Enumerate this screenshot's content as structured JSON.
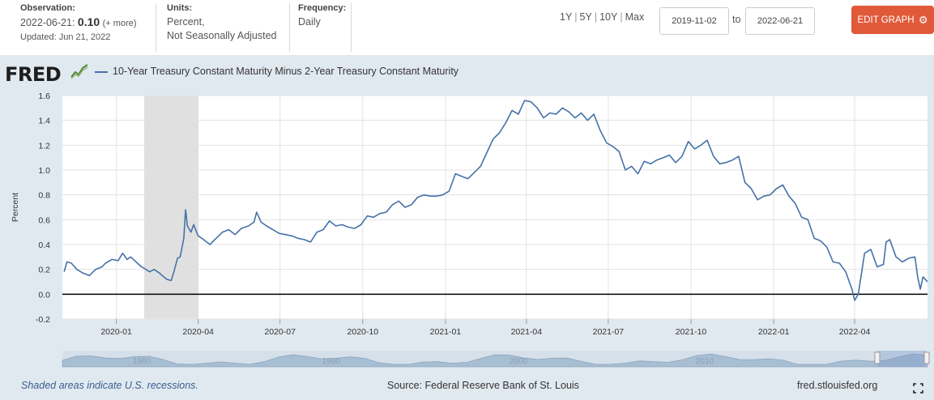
{
  "header": {
    "observation": {
      "label": "Observation:",
      "date": "2022-06-21:",
      "value": "0.10",
      "more": "(+ more)",
      "updated": "Updated: Jun 21, 2022"
    },
    "units": {
      "label": "Units:",
      "line1": "Percent,",
      "line2": "Not Seasonally Adjusted"
    },
    "frequency": {
      "label": "Frequency:",
      "value": "Daily"
    },
    "range_links": [
      "1Y",
      "5Y",
      "10Y",
      "Max"
    ],
    "start_date": "2019-11-02",
    "to_label": "to",
    "end_date": "2022-06-21",
    "edit_button": "EDIT GRAPH",
    "edit_button_color": "#e05a3a"
  },
  "logo": {
    "text": "FRED"
  },
  "footer": {
    "recession_note": "Shaded areas indicate U.S. recessions.",
    "source": "Source: Federal Reserve Bank of St. Louis",
    "url": "fred.stlouisfed.org"
  },
  "colors": {
    "series": "#4572a7",
    "recession": "#e0e0e0",
    "background": "#e1e9f0"
  },
  "chart_data": {
    "type": "line",
    "ylabel": "Percent",
    "ylim": [
      -0.2,
      1.6
    ],
    "yticks": [
      "1.6",
      "1.4",
      "1.2",
      "1.0",
      "0.8",
      "0.6",
      "0.4",
      "0.2",
      "0.0",
      "-0.2"
    ],
    "xlim": [
      "2019-11-02",
      "2022-06-21"
    ],
    "xticks": [
      "2020-01",
      "2020-04",
      "2020-07",
      "2020-10",
      "2021-01",
      "2021-04",
      "2021-07",
      "2021-10",
      "2022-01",
      "2022-04"
    ],
    "grid": true,
    "recessions": [
      {
        "start": "2020-02-01",
        "end": "2020-04-01"
      }
    ],
    "navigator_labels": [
      "1980",
      "1990",
      "2000",
      "2010"
    ],
    "series": [
      {
        "name": "10-Year Treasury Constant Maturity Minus 2-Year Treasury Constant Maturity",
        "points": [
          [
            "2019-11-04",
            0.18
          ],
          [
            "2019-11-07",
            0.26
          ],
          [
            "2019-11-12",
            0.25
          ],
          [
            "2019-11-18",
            0.2
          ],
          [
            "2019-11-25",
            0.17
          ],
          [
            "2019-12-02",
            0.15
          ],
          [
            "2019-12-09",
            0.2
          ],
          [
            "2019-12-16",
            0.22
          ],
          [
            "2019-12-20",
            0.25
          ],
          [
            "2019-12-27",
            0.28
          ],
          [
            "2020-01-03",
            0.27
          ],
          [
            "2020-01-08",
            0.33
          ],
          [
            "2020-01-13",
            0.28
          ],
          [
            "2020-01-17",
            0.3
          ],
          [
            "2020-01-23",
            0.26
          ],
          [
            "2020-01-29",
            0.22
          ],
          [
            "2020-02-03",
            0.2
          ],
          [
            "2020-02-07",
            0.18
          ],
          [
            "2020-02-12",
            0.2
          ],
          [
            "2020-02-18",
            0.17
          ],
          [
            "2020-02-21",
            0.15
          ],
          [
            "2020-02-26",
            0.12
          ],
          [
            "2020-03-02",
            0.11
          ],
          [
            "2020-03-05",
            0.18
          ],
          [
            "2020-03-09",
            0.29
          ],
          [
            "2020-03-12",
            0.3
          ],
          [
            "2020-03-16",
            0.45
          ],
          [
            "2020-03-18",
            0.68
          ],
          [
            "2020-03-20",
            0.55
          ],
          [
            "2020-03-24",
            0.5
          ],
          [
            "2020-03-27",
            0.56
          ],
          [
            "2020-04-01",
            0.47
          ],
          [
            "2020-04-07",
            0.44
          ],
          [
            "2020-04-14",
            0.4
          ],
          [
            "2020-04-21",
            0.45
          ],
          [
            "2020-04-28",
            0.5
          ],
          [
            "2020-05-05",
            0.52
          ],
          [
            "2020-05-12",
            0.48
          ],
          [
            "2020-05-19",
            0.53
          ],
          [
            "2020-05-27",
            0.55
          ],
          [
            "2020-06-02",
            0.58
          ],
          [
            "2020-06-05",
            0.66
          ],
          [
            "2020-06-10",
            0.58
          ],
          [
            "2020-06-16",
            0.55
          ],
          [
            "2020-06-23",
            0.52
          ],
          [
            "2020-06-30",
            0.49
          ],
          [
            "2020-07-07",
            0.48
          ],
          [
            "2020-07-14",
            0.47
          ],
          [
            "2020-07-21",
            0.45
          ],
          [
            "2020-07-28",
            0.44
          ],
          [
            "2020-08-04",
            0.42
          ],
          [
            "2020-08-11",
            0.5
          ],
          [
            "2020-08-18",
            0.52
          ],
          [
            "2020-08-25",
            0.59
          ],
          [
            "2020-09-01",
            0.55
          ],
          [
            "2020-09-08",
            0.56
          ],
          [
            "2020-09-15",
            0.54
          ],
          [
            "2020-09-22",
            0.53
          ],
          [
            "2020-09-29",
            0.56
          ],
          [
            "2020-10-06",
            0.63
          ],
          [
            "2020-10-13",
            0.62
          ],
          [
            "2020-10-20",
            0.65
          ],
          [
            "2020-10-27",
            0.66
          ],
          [
            "2020-11-03",
            0.72
          ],
          [
            "2020-11-10",
            0.75
          ],
          [
            "2020-11-17",
            0.7
          ],
          [
            "2020-11-24",
            0.72
          ],
          [
            "2020-12-01",
            0.78
          ],
          [
            "2020-12-08",
            0.8
          ],
          [
            "2020-12-15",
            0.79
          ],
          [
            "2020-12-22",
            0.79
          ],
          [
            "2020-12-29",
            0.8
          ],
          [
            "2021-01-05",
            0.83
          ],
          [
            "2021-01-12",
            0.97
          ],
          [
            "2021-01-19",
            0.95
          ],
          [
            "2021-01-26",
            0.93
          ],
          [
            "2021-02-02",
            0.98
          ],
          [
            "2021-02-09",
            1.03
          ],
          [
            "2021-02-16",
            1.14
          ],
          [
            "2021-02-23",
            1.25
          ],
          [
            "2021-03-02",
            1.3
          ],
          [
            "2021-03-09",
            1.38
          ],
          [
            "2021-03-16",
            1.48
          ],
          [
            "2021-03-23",
            1.45
          ],
          [
            "2021-03-30",
            1.56
          ],
          [
            "2021-04-06",
            1.55
          ],
          [
            "2021-04-13",
            1.5
          ],
          [
            "2021-04-20",
            1.42
          ],
          [
            "2021-04-27",
            1.46
          ],
          [
            "2021-05-04",
            1.45
          ],
          [
            "2021-05-11",
            1.5
          ],
          [
            "2021-05-18",
            1.47
          ],
          [
            "2021-05-25",
            1.42
          ],
          [
            "2021-06-01",
            1.46
          ],
          [
            "2021-06-08",
            1.4
          ],
          [
            "2021-06-15",
            1.45
          ],
          [
            "2021-06-22",
            1.32
          ],
          [
            "2021-06-29",
            1.22
          ],
          [
            "2021-07-06",
            1.19
          ],
          [
            "2021-07-13",
            1.15
          ],
          [
            "2021-07-20",
            1.0
          ],
          [
            "2021-07-27",
            1.03
          ],
          [
            "2021-08-03",
            0.97
          ],
          [
            "2021-08-10",
            1.07
          ],
          [
            "2021-08-17",
            1.05
          ],
          [
            "2021-08-24",
            1.08
          ],
          [
            "2021-08-31",
            1.1
          ],
          [
            "2021-09-07",
            1.12
          ],
          [
            "2021-09-14",
            1.06
          ],
          [
            "2021-09-21",
            1.11
          ],
          [
            "2021-09-28",
            1.23
          ],
          [
            "2021-10-05",
            1.17
          ],
          [
            "2021-10-12",
            1.2
          ],
          [
            "2021-10-19",
            1.24
          ],
          [
            "2021-10-26",
            1.11
          ],
          [
            "2021-11-02",
            1.05
          ],
          [
            "2021-11-09",
            1.06
          ],
          [
            "2021-11-16",
            1.08
          ],
          [
            "2021-11-23",
            1.11
          ],
          [
            "2021-11-30",
            0.9
          ],
          [
            "2021-12-07",
            0.85
          ],
          [
            "2021-12-14",
            0.76
          ],
          [
            "2021-12-21",
            0.79
          ],
          [
            "2021-12-28",
            0.8
          ],
          [
            "2022-01-04",
            0.85
          ],
          [
            "2022-01-11",
            0.88
          ],
          [
            "2022-01-18",
            0.79
          ],
          [
            "2022-01-25",
            0.73
          ],
          [
            "2022-02-01",
            0.62
          ],
          [
            "2022-02-08",
            0.6
          ],
          [
            "2022-02-15",
            0.45
          ],
          [
            "2022-02-22",
            0.43
          ],
          [
            "2022-03-01",
            0.38
          ],
          [
            "2022-03-08",
            0.26
          ],
          [
            "2022-03-15",
            0.25
          ],
          [
            "2022-03-22",
            0.18
          ],
          [
            "2022-03-29",
            0.04
          ],
          [
            "2022-04-01",
            -0.05
          ],
          [
            "2022-04-05",
            0.0
          ],
          [
            "2022-04-12",
            0.33
          ],
          [
            "2022-04-19",
            0.36
          ],
          [
            "2022-04-26",
            0.22
          ],
          [
            "2022-05-03",
            0.24
          ],
          [
            "2022-05-06",
            0.42
          ],
          [
            "2022-05-10",
            0.44
          ],
          [
            "2022-05-17",
            0.3
          ],
          [
            "2022-05-24",
            0.26
          ],
          [
            "2022-05-31",
            0.29
          ],
          [
            "2022-06-07",
            0.3
          ],
          [
            "2022-06-10",
            0.14
          ],
          [
            "2022-06-13",
            0.04
          ],
          [
            "2022-06-16",
            0.14
          ],
          [
            "2022-06-21",
            0.1
          ]
        ]
      }
    ]
  }
}
